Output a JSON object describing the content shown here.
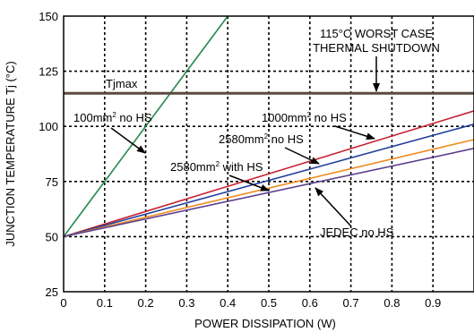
{
  "chart_data": {
    "type": "line",
    "xlabel": "POWER DISSIPATION (W)",
    "ylabel": "JUNCTION TEMPERATURE Tj (°C)",
    "xlim": [
      0,
      1.0
    ],
    "ylim": [
      25,
      150
    ],
    "x_ticks": [
      0,
      0.1,
      0.2,
      0.3,
      0.4,
      0.5,
      0.6,
      0.7,
      0.8,
      0.9
    ],
    "x_tick_labels": [
      "0",
      "0.1",
      "0.2",
      "0.3",
      "0.4",
      "0.5",
      "0.6",
      "0.7",
      "0.8",
      "0.9"
    ],
    "y_ticks": [
      25,
      50,
      75,
      100,
      125,
      150
    ],
    "y_tick_labels": [
      "25",
      "50",
      "75",
      "100",
      "125",
      "150"
    ],
    "grid": true,
    "colors": {
      "tjmax": "#5a4a40",
      "s100": "#1f8a4c",
      "s1000": "#c8202f",
      "s2580": "#1f3f9a",
      "s2580hs": "#f08a1c",
      "jedec": "#5c3f8f"
    },
    "series": [
      {
        "key": "s100",
        "x": [
          0,
          0.4
        ],
        "y": [
          50,
          150
        ]
      },
      {
        "key": "s1000",
        "x": [
          0,
          1.0
        ],
        "y": [
          50,
          107
        ]
      },
      {
        "key": "s2580",
        "x": [
          0,
          1.0
        ],
        "y": [
          50,
          101
        ]
      },
      {
        "key": "s2580hs",
        "x": [
          0,
          1.0
        ],
        "y": [
          50,
          94
        ]
      },
      {
        "key": "jedec",
        "x": [
          0,
          1.0
        ],
        "y": [
          50,
          90
        ]
      }
    ],
    "tjmax": {
      "y": 115,
      "label": "Tjmax"
    },
    "annotations": {
      "s100": "100mm",
      "s100_sup": "2",
      "s100_suffix": " no HS",
      "s1000": "1000mm",
      "s1000_sup": "2",
      "s1000_suffix": " no HS",
      "s2580": "2580mm",
      "s2580_sup": "2",
      "s2580_suffix": " no HS",
      "s2580hs": "2580mm",
      "s2580hs_sup": "2",
      "s2580hs_suffix": " with HS",
      "jedec": "JEDEC no HS",
      "shutdown_line1": "115°C WORST CASE",
      "shutdown_line2": "THERMAL SHUTDOWN"
    }
  }
}
